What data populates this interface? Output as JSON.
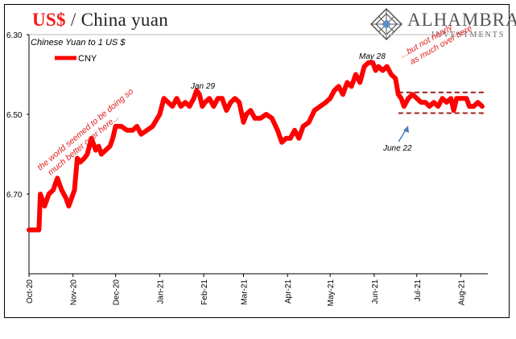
{
  "header": {
    "title_main": "US$",
    "title_sep": " / ",
    "title_rest": "China yuan",
    "brand_name": "ALHAMBRA",
    "brand_sub": "INVESTMENTS",
    "logo_icon": "diamond-lattice-icon"
  },
  "colors": {
    "series": "#ff0000",
    "title_accent": "#ee1c1c",
    "annotation": "#e02020",
    "band": "#a01c1c",
    "arrow": "#4a7fb5"
  },
  "chart_data": {
    "type": "line",
    "subtitle": "Chinese Yuan to 1 US $",
    "y_axis": {
      "min": 6.3,
      "max": 6.9,
      "inverted": true,
      "ticks": [
        "6.30",
        "6.50",
        "6.70"
      ],
      "tick_values": [
        6.3,
        6.5,
        6.7
      ]
    },
    "x_ticks": [
      "Oct-20",
      "Nov-20",
      "Dec-20",
      "Jan-21",
      "Feb-21",
      "Mar-21",
      "Apr-21",
      "May-21",
      "Jun-21",
      "Jul-21",
      "Aug-21"
    ],
    "x_tick_dates": [
      "2020-10-01",
      "2020-11-01",
      "2020-12-01",
      "2021-01-01",
      "2021-02-01",
      "2021-03-01",
      "2021-04-01",
      "2021-05-01",
      "2021-06-01",
      "2021-07-01",
      "2021-08-01"
    ],
    "legend": {
      "label": "CNY",
      "position": "top-left"
    },
    "grid": false,
    "series": [
      {
        "name": "CNY",
        "points": [
          [
            "2020-10-01",
            6.79
          ],
          [
            "2020-10-08",
            6.79
          ],
          [
            "2020-10-09",
            6.7
          ],
          [
            "2020-10-12",
            6.73
          ],
          [
            "2020-10-15",
            6.7
          ],
          [
            "2020-10-18",
            6.69
          ],
          [
            "2020-10-21",
            6.66
          ],
          [
            "2020-10-24",
            6.69
          ],
          [
            "2020-10-27",
            6.71
          ],
          [
            "2020-10-29",
            6.73
          ],
          [
            "2020-11-02",
            6.69
          ],
          [
            "2020-11-04",
            6.61
          ],
          [
            "2020-11-06",
            6.62
          ],
          [
            "2020-11-09",
            6.61
          ],
          [
            "2020-11-11",
            6.6
          ],
          [
            "2020-11-14",
            6.56
          ],
          [
            "2020-11-17",
            6.59
          ],
          [
            "2020-11-19",
            6.58
          ],
          [
            "2020-11-21",
            6.6
          ],
          [
            "2020-11-24",
            6.59
          ],
          [
            "2020-11-27",
            6.58
          ],
          [
            "2020-11-29",
            6.56
          ],
          [
            "2020-12-01",
            6.53
          ],
          [
            "2020-12-05",
            6.53
          ],
          [
            "2020-12-09",
            6.54
          ],
          [
            "2020-12-13",
            6.54
          ],
          [
            "2020-12-16",
            6.53
          ],
          [
            "2020-12-19",
            6.55
          ],
          [
            "2020-12-23",
            6.54
          ],
          [
            "2020-12-27",
            6.53
          ],
          [
            "2021-01-01",
            6.5
          ],
          [
            "2021-01-04",
            6.46
          ],
          [
            "2021-01-07",
            6.47
          ],
          [
            "2021-01-10",
            6.48
          ],
          [
            "2021-01-13",
            6.46
          ],
          [
            "2021-01-16",
            6.48
          ],
          [
            "2021-01-19",
            6.47
          ],
          [
            "2021-01-22",
            6.48
          ],
          [
            "2021-01-25",
            6.46
          ],
          [
            "2021-01-27",
            6.44
          ],
          [
            "2021-01-29",
            6.45
          ],
          [
            "2021-01-31",
            6.48
          ],
          [
            "2021-02-02",
            6.47
          ],
          [
            "2021-02-05",
            6.46
          ],
          [
            "2021-02-08",
            6.48
          ],
          [
            "2021-02-11",
            6.46
          ],
          [
            "2021-02-14",
            6.46
          ],
          [
            "2021-02-17",
            6.49
          ],
          [
            "2021-02-20",
            6.47
          ],
          [
            "2021-02-23",
            6.46
          ],
          [
            "2021-02-26",
            6.47
          ],
          [
            "2021-03-01",
            6.52
          ],
          [
            "2021-03-03",
            6.5
          ],
          [
            "2021-03-06",
            6.49
          ],
          [
            "2021-03-09",
            6.51
          ],
          [
            "2021-03-13",
            6.51
          ],
          [
            "2021-03-17",
            6.5
          ],
          [
            "2021-03-21",
            6.51
          ],
          [
            "2021-03-25",
            6.54
          ],
          [
            "2021-03-28",
            6.57
          ],
          [
            "2021-03-31",
            6.56
          ],
          [
            "2021-04-03",
            6.56
          ],
          [
            "2021-04-06",
            6.54
          ],
          [
            "2021-04-09",
            6.56
          ],
          [
            "2021-04-12",
            6.53
          ],
          [
            "2021-04-16",
            6.52
          ],
          [
            "2021-04-20",
            6.49
          ],
          [
            "2021-04-24",
            6.48
          ],
          [
            "2021-04-28",
            6.47
          ],
          [
            "2021-05-01",
            6.46
          ],
          [
            "2021-05-04",
            6.44
          ],
          [
            "2021-05-07",
            6.43
          ],
          [
            "2021-05-10",
            6.45
          ],
          [
            "2021-05-13",
            6.42
          ],
          [
            "2021-05-16",
            6.43
          ],
          [
            "2021-05-19",
            6.4
          ],
          [
            "2021-05-22",
            6.42
          ],
          [
            "2021-05-25",
            6.38
          ],
          [
            "2021-05-28",
            6.37
          ],
          [
            "2021-05-31",
            6.37
          ],
          [
            "2021-06-02",
            6.39
          ],
          [
            "2021-06-04",
            6.38
          ],
          [
            "2021-06-07",
            6.39
          ],
          [
            "2021-06-10",
            6.38
          ],
          [
            "2021-06-13",
            6.4
          ],
          [
            "2021-06-16",
            6.41
          ],
          [
            "2021-06-18",
            6.45
          ],
          [
            "2021-06-20",
            6.46
          ],
          [
            "2021-06-22",
            6.48
          ],
          [
            "2021-06-25",
            6.46
          ],
          [
            "2021-06-28",
            6.45
          ],
          [
            "2021-07-01",
            6.46
          ],
          [
            "2021-07-04",
            6.47
          ],
          [
            "2021-07-07",
            6.47
          ],
          [
            "2021-07-10",
            6.48
          ],
          [
            "2021-07-13",
            6.47
          ],
          [
            "2021-07-16",
            6.48
          ],
          [
            "2021-07-19",
            6.46
          ],
          [
            "2021-07-22",
            6.47
          ],
          [
            "2021-07-25",
            6.46
          ],
          [
            "2021-07-27",
            6.49
          ],
          [
            "2021-07-29",
            6.46
          ],
          [
            "2021-08-02",
            6.46
          ],
          [
            "2021-08-05",
            6.46
          ],
          [
            "2021-08-07",
            6.48
          ],
          [
            "2021-08-10",
            6.48
          ],
          [
            "2021-08-13",
            6.47
          ],
          [
            "2021-08-16",
            6.48
          ]
        ]
      }
    ],
    "band": {
      "top": 6.445,
      "bottom": 6.497,
      "from": "2021-06-18",
      "to": "2021-08-19"
    },
    "annotations": {
      "jan29": "Jan 29",
      "may28": "May 28",
      "june22": "June 22",
      "left_text": [
        "the world seemed to be doing so",
        "much better over here..."
      ],
      "right_text": [
        "...but not nearly",
        "as much over here"
      ]
    }
  }
}
